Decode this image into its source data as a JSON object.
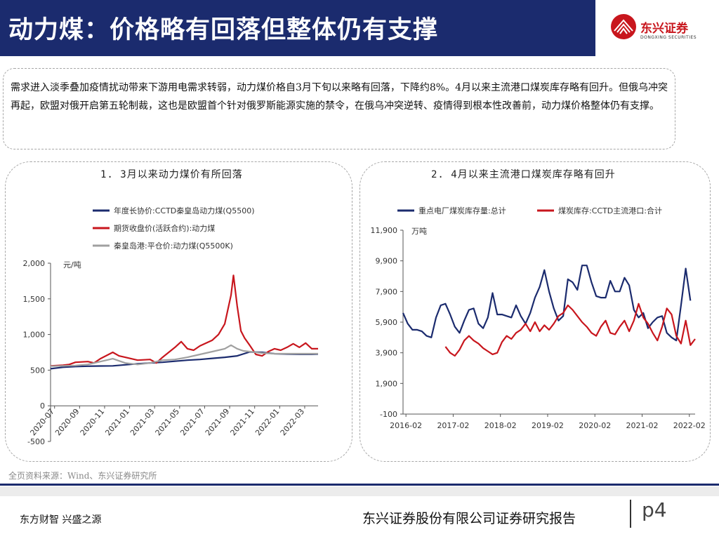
{
  "header": {
    "title": "动力煤：价格略有回落但整体仍有支撑",
    "logo_cn": "东兴证券",
    "logo_en": "DONGXING SECURITIES"
  },
  "summary": {
    "text": "需求进入淡季叠加疫情扰动带来下游用电需求转弱，动力煤价格自3月下旬以来略有回落，下降约8%。4月以来主流港口煤炭库存略有回升。但俄乌冲突再起，欧盟对俄开启第五轮制裁，这也是欧盟首个针对俄罗斯能源实施的禁令，在俄乌冲突逆转、疫情得到根本性改善前，动力煤价格整体仍有支撑。"
  },
  "chart_data": [
    {
      "type": "line",
      "title": "1. 3月以来动力煤价有所回落",
      "unit": "元/吨",
      "ylim": [
        -500,
        2000
      ],
      "yticks": [
        "2,000",
        "1,500",
        "1,000",
        "500",
        "0",
        "-500"
      ],
      "ytick_values": [
        2000,
        1500,
        1000,
        500,
        0,
        -500
      ],
      "xticks": [
        "2020-07",
        "2020-09",
        "2020-11",
        "2021-01",
        "2021-03",
        "2021-05",
        "2021-07",
        "2021-09",
        "2021-11",
        "2022-01",
        "2022-03"
      ],
      "x_range": [
        0,
        21.5
      ],
      "legend_position": "top-left",
      "series": [
        {
          "name": "年度长协价:CCTD秦皇岛动力煤(Q5500)",
          "color": "#1b2b6e",
          "x": [
            0,
            1,
            2,
            3,
            4,
            5,
            6,
            7,
            8,
            9,
            10,
            11,
            12,
            13,
            14,
            15,
            16,
            17,
            18,
            19,
            20,
            21,
            21.5
          ],
          "values": [
            520,
            540,
            550,
            555,
            558,
            560,
            575,
            590,
            600,
            610,
            625,
            640,
            650,
            665,
            680,
            700,
            755,
            750,
            730,
            725,
            722,
            722,
            725
          ]
        },
        {
          "name": "期货收盘价(活跃合约):动力煤",
          "color": "#c8161d",
          "x": [
            0,
            1,
            1.5,
            2,
            3,
            3.5,
            4,
            5,
            5.5,
            6,
            7,
            8,
            8.5,
            9,
            10,
            10.5,
            11,
            11.5,
            12,
            13,
            13.5,
            14,
            14.5,
            14.7,
            15,
            15.3,
            15.6,
            16,
            16.5,
            17,
            17.5,
            18,
            18.5,
            19,
            19.5,
            20,
            20.5,
            21,
            21.5
          ],
          "values": [
            560,
            570,
            580,
            610,
            620,
            600,
            660,
            750,
            700,
            680,
            640,
            650,
            600,
            680,
            820,
            900,
            800,
            780,
            840,
            920,
            1000,
            1150,
            1550,
            1830,
            1400,
            1050,
            950,
            850,
            720,
            700,
            760,
            800,
            780,
            820,
            870,
            820,
            880,
            800,
            800
          ]
        },
        {
          "name": "秦皇岛港:平仓价:动力煤(Q5500K)",
          "color": "#a0a0a0",
          "x": [
            0,
            1,
            2,
            3,
            4,
            4.5,
            5,
            6,
            7,
            8,
            9,
            10,
            11,
            12,
            13,
            14,
            14.5,
            15,
            15.5,
            16,
            17,
            18,
            19,
            20,
            21,
            21.5
          ],
          "values": [
            555,
            560,
            565,
            580,
            620,
            640,
            660,
            600,
            580,
            600,
            640,
            650,
            680,
            720,
            760,
            800,
            850,
            800,
            770,
            760,
            740,
            730,
            730,
            730,
            730,
            730
          ]
        }
      ]
    },
    {
      "type": "line",
      "title": "2. 4月以来主流港口煤炭库存略有回升",
      "unit": "万吨",
      "ylim": [
        -100,
        11900
      ],
      "yticks": [
        "11,900",
        "9,900",
        "7,900",
        "5,900",
        "3,900",
        "1,900",
        "-100"
      ],
      "ytick_values": [
        11900,
        9900,
        7900,
        5900,
        3900,
        1900,
        -100
      ],
      "xticks": [
        "2016-02",
        "2017-02",
        "2018-02",
        "2019-02",
        "2020-02",
        "2021-02",
        "2022-02"
      ],
      "x_range": [
        0,
        6.2
      ],
      "legend_position": "top",
      "series": [
        {
          "name": "重点电厂煤炭库存量:总计",
          "color": "#1b2b6e",
          "x": [
            0,
            0.1,
            0.2,
            0.3,
            0.4,
            0.5,
            0.6,
            0.7,
            0.8,
            0.9,
            1.0,
            1.1,
            1.2,
            1.3,
            1.4,
            1.5,
            1.6,
            1.7,
            1.8,
            1.9,
            2.0,
            2.1,
            2.2,
            2.3,
            2.4,
            2.5,
            2.6,
            2.7,
            2.8,
            2.9,
            3.0,
            3.1,
            3.2,
            3.3,
            3.4,
            3.5,
            3.6,
            3.7,
            3.8,
            3.9,
            4.0,
            4.1,
            4.2,
            4.3,
            4.4,
            4.5,
            4.6,
            4.7,
            4.8,
            4.9,
            5.0,
            5.1,
            5.2,
            5.3,
            5.4,
            5.5,
            5.6,
            5.7,
            5.8,
            5.9,
            6.0,
            6.1
          ],
          "values": [
            6500,
            5800,
            5400,
            5400,
            5300,
            5000,
            4900,
            6200,
            7000,
            7100,
            6400,
            5600,
            5200,
            6000,
            6700,
            6800,
            5800,
            5500,
            6200,
            7800,
            6400,
            6400,
            6300,
            6200,
            7000,
            6300,
            5800,
            6500,
            7500,
            8200,
            9300,
            7900,
            6800,
            6000,
            6300,
            8700,
            8500,
            8000,
            9600,
            9600,
            8500,
            7600,
            7500,
            7500,
            8600,
            7900,
            7900,
            8800,
            8300,
            6700,
            6200,
            6500,
            5500,
            5900,
            6200,
            6300,
            5200,
            4900,
            4700,
            7000,
            9400,
            7300
          ]
        },
        {
          "name": "煤炭库存:CCTD主流港口:合计",
          "color": "#c8161d",
          "x": [
            0.9,
            1.0,
            1.1,
            1.2,
            1.3,
            1.4,
            1.5,
            1.6,
            1.7,
            1.8,
            1.9,
            2.0,
            2.1,
            2.2,
            2.3,
            2.4,
            2.5,
            2.6,
            2.7,
            2.8,
            2.9,
            3.0,
            3.1,
            3.2,
            3.3,
            3.4,
            3.5,
            3.6,
            3.7,
            3.8,
            3.9,
            4.0,
            4.1,
            4.2,
            4.3,
            4.4,
            4.5,
            4.6,
            4.7,
            4.8,
            4.9,
            5.0,
            5.1,
            5.2,
            5.3,
            5.4,
            5.5,
            5.6,
            5.7,
            5.8,
            5.9,
            6.0,
            6.1,
            6.2
          ],
          "values": [
            4300,
            3900,
            3700,
            4100,
            4700,
            5000,
            4700,
            4500,
            4200,
            4000,
            3800,
            3900,
            4600,
            5000,
            4800,
            5200,
            5400,
            5800,
            5300,
            5900,
            5300,
            5700,
            5400,
            5800,
            6300,
            6500,
            7000,
            6700,
            6300,
            5900,
            5600,
            5200,
            5000,
            5600,
            6000,
            5200,
            5100,
            5600,
            6000,
            5300,
            6000,
            7100,
            6200,
            5800,
            5200,
            4700,
            5600,
            6800,
            6400,
            5000,
            4500,
            6000,
            4400,
            4800
          ]
        }
      ]
    }
  ],
  "source": "全页资料来源：Wind、东兴证券研究所",
  "footer": {
    "slogan": "东方财智 兴盛之源",
    "company": "东兴证券股份有限公司证券研究报告",
    "page": "p4"
  }
}
